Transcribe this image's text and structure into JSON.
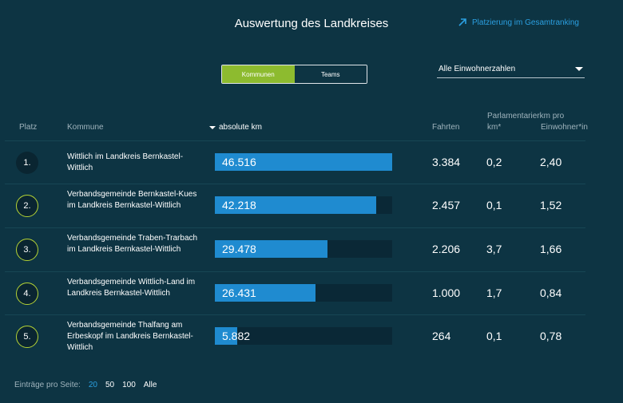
{
  "page_title": "Auswertung des Landkreises",
  "ranking_link": "Platzierung im Gesamtranking",
  "toggle": {
    "active": "Kommunen",
    "inactive": "Teams"
  },
  "select": {
    "value": "Alle Einwohnerzahlen"
  },
  "columns": {
    "platz": "Platz",
    "kommune": "Kommune",
    "km": "absolute km",
    "fahrten": "Fahrten",
    "parl_line1": "Parlamentarierkm pro",
    "parl_line2": "km*",
    "einw": "Einwohner*in"
  },
  "rows": [
    {
      "rank": "1.",
      "name": "Wittlich im Landkreis Bernkastel-Wittlich",
      "km": "46.516",
      "fill": 1.0,
      "fahrten": "3.384",
      "parl": "0,2",
      "einw": "2,40"
    },
    {
      "rank": "2.",
      "name": "Verbandsgemeinde Bernkastel-Kues im Landkreis Bernkastel-Wittlich",
      "km": "42.218",
      "fill": 0.908,
      "fahrten": "2.457",
      "parl": "0,1",
      "einw": "1,52"
    },
    {
      "rank": "3.",
      "name": "Verbandsgemeinde Traben-Trarbach im Landkreis Bernkastel-Wittlich",
      "km": "29.478",
      "fill": 0.634,
      "fahrten": "2.206",
      "parl": "3,7",
      "einw": "1,66"
    },
    {
      "rank": "4.",
      "name": "Verbandsgemeinde Wittlich-Land im Landkreis Bernkastel-Wittlich",
      "km": "26.431",
      "fill": 0.568,
      "fahrten": "1.000",
      "parl": "1,7",
      "einw": "0,84"
    },
    {
      "rank": "5.",
      "name": "Verbandsgemeinde Thalfang am Erbeskopf im Landkreis Bernkastel-Wittlich",
      "km": "5.882",
      "fill": 0.126,
      "fahrten": "264",
      "parl": "0,1",
      "einw": "0,78"
    }
  ],
  "footer": {
    "label": "Einträge pro Seite:",
    "options": [
      "20",
      "50",
      "100",
      "Alle"
    ],
    "selected": "20"
  }
}
